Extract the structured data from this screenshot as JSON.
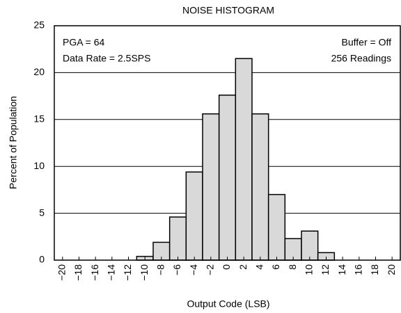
{
  "chart_data": {
    "type": "histogram",
    "title": "NOISE HISTOGRAM",
    "x_label": "Output Code (LSB)",
    "y_label": "Percent of Population",
    "bins": [
      -11,
      -9,
      -7,
      -5,
      -3,
      -1,
      1,
      3,
      5,
      7,
      9,
      11,
      13
    ],
    "values": [
      0.4,
      1.9,
      4.6,
      9.4,
      15.6,
      17.6,
      21.5,
      15.6,
      7.0,
      2.3,
      3.1,
      0.8
    ],
    "color": "#d9d9d9",
    "xlim": [
      -21,
      21
    ],
    "xticks": [
      {
        "value": -20,
        "label": "−20"
      },
      {
        "value": -18,
        "label": "−18"
      },
      {
        "value": -16,
        "label": "−16"
      },
      {
        "value": -14,
        "label": "−14"
      },
      {
        "value": -12,
        "label": "−12"
      },
      {
        "value": -10,
        "label": "−10"
      },
      {
        "value": -8,
        "label": "−8"
      },
      {
        "value": -6,
        "label": "−6"
      },
      {
        "value": -4,
        "label": "−4"
      },
      {
        "value": -2,
        "label": "−2"
      },
      0,
      2,
      4,
      6,
      8,
      10,
      12,
      14,
      16,
      18,
      20
    ],
    "ylim": [
      0,
      25
    ],
    "yticks": [
      0,
      5,
      10,
      15,
      20,
      25
    ],
    "grid": true,
    "annotations": [
      "PGA = 64",
      "Data Rate = 2.5SPS",
      "Buffer = Off",
      "256 Readings"
    ]
  }
}
